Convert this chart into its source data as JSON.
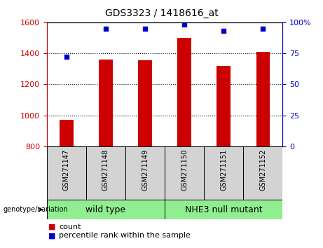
{
  "title": "GDS3323 / 1418616_at",
  "samples": [
    "GSM271147",
    "GSM271148",
    "GSM271149",
    "GSM271150",
    "GSM271151",
    "GSM271152"
  ],
  "counts": [
    970,
    1360,
    1355,
    1500,
    1320,
    1410
  ],
  "percentile_ranks": [
    72,
    95,
    95,
    98,
    93,
    95
  ],
  "groups": [
    {
      "label": "wild type",
      "color": "#90EE90",
      "start": 0,
      "end": 3
    },
    {
      "label": "NHE3 null mutant",
      "color": "#90EE90",
      "start": 3,
      "end": 6
    }
  ],
  "ylim_left": [
    800,
    1600
  ],
  "ylim_right": [
    0,
    100
  ],
  "yticks_left": [
    800,
    1000,
    1200,
    1400,
    1600
  ],
  "yticks_right": [
    0,
    25,
    50,
    75,
    100
  ],
  "ytick_right_labels": [
    "0",
    "25",
    "50",
    "75",
    "100%"
  ],
  "bar_color": "#CC0000",
  "dot_color": "#0000CC",
  "bar_width": 0.35,
  "grid_color": "black",
  "background_color": "white",
  "label_count": "count",
  "label_percentile": "percentile rank within the sample",
  "group_label_prefix": "genotype/variation",
  "left_axis_color": "#CC0000",
  "right_axis_color": "#0000CC",
  "tick_label_bg": "#D3D3D3",
  "green_color": "#90EE90",
  "title_fontsize": 10,
  "tick_fontsize": 8,
  "sample_fontsize": 7,
  "legend_fontsize": 8,
  "group_fontsize": 9
}
